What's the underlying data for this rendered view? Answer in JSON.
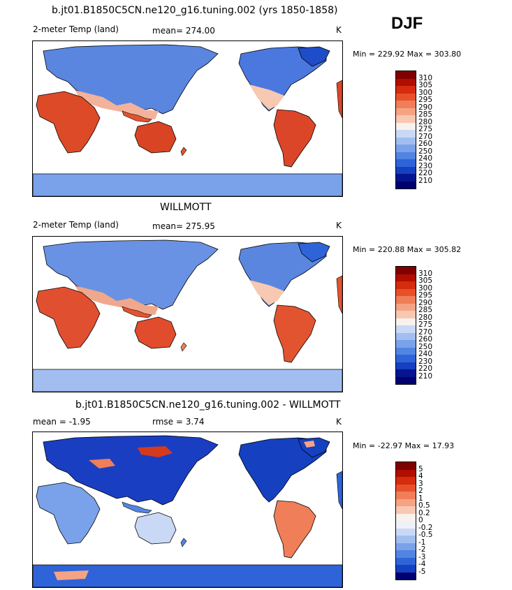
{
  "season": "DJF",
  "panels": [
    {
      "title": "b.jt01.B1850C5CN.ne120_g16.tuning.002 (yrs 1850-1858)",
      "left_label": "2-meter Temp (land)",
      "center_label": "mean= 274.00",
      "units": "K",
      "stats": "Min = 229.92 Max = 303.80",
      "colorbar_labels": [
        "310",
        "305",
        "300",
        "295",
        "290",
        "285",
        "280",
        "275",
        "270",
        "260",
        "250",
        "240",
        "230",
        "220",
        "210"
      ],
      "colors": [
        "#800000",
        "#b00e00",
        "#d42c0c",
        "#e8502a",
        "#f07e58",
        "#f5a384",
        "#f8c8b2",
        "#f8f2ee",
        "#c9d9f5",
        "#a2bef0",
        "#7aa2ea",
        "#5285e2",
        "#2e64d8",
        "#1540c0",
        "#06148f",
        "#000070"
      ]
    },
    {
      "title": "WILLMOTT",
      "left_label": "2-meter Temp (land)",
      "center_label": "mean= 275.95",
      "units": "K",
      "stats": "Min = 220.88 Max = 305.82",
      "colorbar_labels": [
        "310",
        "305",
        "300",
        "295",
        "290",
        "285",
        "280",
        "275",
        "270",
        "260",
        "250",
        "240",
        "230",
        "220",
        "210"
      ],
      "colors": [
        "#800000",
        "#b00e00",
        "#d42c0c",
        "#e8502a",
        "#f07e58",
        "#f5a384",
        "#f8c8b2",
        "#f8f2ee",
        "#c9d9f5",
        "#a2bef0",
        "#7aa2ea",
        "#5285e2",
        "#2e64d8",
        "#1540c0",
        "#06148f",
        "#000070"
      ]
    },
    {
      "title": "b.jt01.B1850C5CN.ne120_g16.tuning.002 - WILLMOTT",
      "left_label": "mean =   -1.95",
      "center_label": "rmse =    3.74",
      "units": "K",
      "stats": "Min = -22.97 Max =  17.93",
      "colorbar_labels": [
        "5",
        "4",
        "3",
        "2",
        "1",
        "0.5",
        "0.2",
        "0",
        "-0.2",
        "-0.5",
        "-1",
        "-2",
        "-3",
        "-4",
        "-5"
      ],
      "colors": [
        "#800000",
        "#b00e00",
        "#d42c0c",
        "#e8502a",
        "#f07e58",
        "#f5a384",
        "#f8c8b2",
        "#f8f2ee",
        "#f0f0f8",
        "#c9d9f5",
        "#a2bef0",
        "#7aa2ea",
        "#5285e2",
        "#2e64d8",
        "#1540c0",
        "#000070"
      ]
    }
  ]
}
